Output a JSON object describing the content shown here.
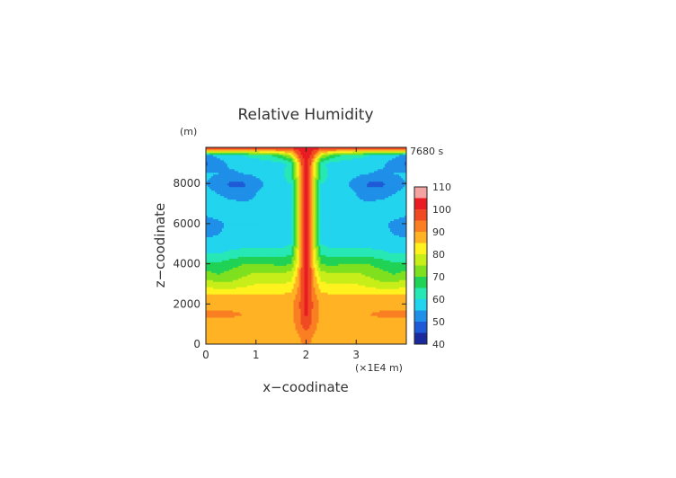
{
  "chart_data": {
    "type": "heatmap",
    "title": "Relative Humidity",
    "time_label": "7680 s",
    "xlabel": "x−coodinate",
    "ylabel": "z−coodinate",
    "x_unit": "(×1E4 m)",
    "y_unit": "(m)",
    "xlim": [
      0,
      4
    ],
    "ylim": [
      0,
      9800
    ],
    "x_ticks": [
      "0",
      "1",
      "2",
      "3"
    ],
    "y_ticks": [
      "0",
      "2000",
      "4000",
      "6000",
      "8000"
    ],
    "colorbar": {
      "min": 40,
      "max": 110,
      "tick_labels": [
        "40",
        "50",
        "60",
        "70",
        "80",
        "90",
        "100",
        "110"
      ],
      "bands": [
        {
          "from": 40,
          "to": 45,
          "color": "#1a2a9c"
        },
        {
          "from": 45,
          "to": 50,
          "color": "#1f5ad6"
        },
        {
          "from": 50,
          "to": 55,
          "color": "#1f8fe8"
        },
        {
          "from": 55,
          "to": 60,
          "color": "#22d4ee"
        },
        {
          "from": 60,
          "to": 65,
          "color": "#27e8b4"
        },
        {
          "from": 65,
          "to": 70,
          "color": "#20d255"
        },
        {
          "from": 70,
          "to": 75,
          "color": "#7ee01e"
        },
        {
          "from": 75,
          "to": 80,
          "color": "#c8ee1a"
        },
        {
          "from": 80,
          "to": 85,
          "color": "#fff21e"
        },
        {
          "from": 85,
          "to": 90,
          "color": "#ffb224"
        },
        {
          "from": 90,
          "to": 95,
          "color": "#f97f22"
        },
        {
          "from": 95,
          "to": 100,
          "color": "#f04a22"
        },
        {
          "from": 100,
          "to": 105,
          "color": "#e81c22"
        },
        {
          "from": 105,
          "to": 110,
          "color": "#f4a3a3"
        }
      ]
    },
    "field": {
      "grid_x": [
        0,
        0.25,
        0.5,
        0.75,
        1.0,
        1.25,
        1.5,
        1.7,
        1.85,
        1.92,
        2.0,
        2.08,
        2.15,
        2.3,
        2.5,
        2.75,
        3.0,
        3.25,
        3.5,
        3.75,
        4.0
      ],
      "grid_z": [
        0,
        500,
        1000,
        1500,
        2000,
        2500,
        3000,
        3500,
        4000,
        4500,
        5000,
        5500,
        6000,
        6500,
        7000,
        7500,
        8000,
        8500,
        9000,
        9400,
        9800
      ],
      "rh": [
        [
          85,
          85,
          85,
          85,
          85,
          85,
          86,
          87,
          88,
          90,
          91,
          90,
          88,
          87,
          86,
          85,
          85,
          85,
          85,
          85,
          85
        ],
        [
          86,
          86,
          86,
          86,
          86,
          86,
          87,
          88,
          90,
          92,
          93,
          92,
          90,
          88,
          87,
          86,
          86,
          86,
          86,
          86,
          86
        ],
        [
          88,
          88,
          88,
          87,
          86,
          86,
          86,
          88,
          92,
          96,
          98,
          96,
          92,
          88,
          86,
          86,
          86,
          87,
          88,
          88,
          88
        ],
        [
          91,
          91,
          91,
          90,
          89,
          88,
          88,
          89,
          93,
          98,
          101,
          98,
          93,
          89,
          88,
          88,
          89,
          90,
          91,
          91,
          91
        ],
        [
          88,
          88,
          88,
          88,
          88,
          88,
          88,
          89,
          93,
          99,
          102,
          99,
          93,
          89,
          88,
          88,
          88,
          88,
          88,
          88,
          88
        ],
        [
          85,
          85,
          85,
          85,
          85,
          85,
          85,
          86,
          92,
          99,
          102,
          99,
          92,
          86,
          85,
          85,
          85,
          85,
          85,
          85,
          85
        ],
        [
          78,
          76,
          76,
          78,
          80,
          80,
          80,
          81,
          90,
          98,
          102,
          98,
          90,
          81,
          80,
          80,
          80,
          78,
          76,
          76,
          78
        ],
        [
          72,
          70,
          72,
          74,
          76,
          76,
          76,
          77,
          88,
          97,
          102,
          97,
          88,
          77,
          76,
          76,
          76,
          74,
          72,
          70,
          72
        ],
        [
          66,
          66,
          68,
          70,
          70,
          70,
          69,
          70,
          85,
          96,
          102,
          96,
          85,
          70,
          69,
          70,
          70,
          70,
          68,
          66,
          66
        ],
        [
          60,
          60,
          62,
          63,
          63,
          63,
          63,
          65,
          82,
          96,
          102,
          96,
          82,
          65,
          63,
          63,
          63,
          63,
          62,
          60,
          60
        ],
        [
          57,
          56,
          57,
          58,
          58,
          58,
          58,
          60,
          80,
          96,
          102,
          96,
          80,
          60,
          58,
          58,
          58,
          58,
          57,
          56,
          57
        ],
        [
          54,
          55,
          56,
          57,
          57,
          57,
          57,
          59,
          80,
          96,
          102,
          96,
          80,
          59,
          57,
          57,
          57,
          57,
          56,
          55,
          54
        ],
        [
          51,
          54,
          56,
          56,
          56,
          56,
          56,
          58,
          80,
          96,
          102,
          96,
          80,
          58,
          56,
          56,
          56,
          56,
          56,
          54,
          51
        ],
        [
          56,
          57,
          57,
          57,
          57,
          56,
          57,
          59,
          80,
          96,
          102,
          96,
          80,
          59,
          57,
          56,
          57,
          57,
          57,
          57,
          56
        ],
        [
          58,
          58,
          57,
          56,
          56,
          57,
          59,
          60,
          80,
          96,
          102,
          96,
          80,
          60,
          59,
          57,
          56,
          56,
          57,
          58,
          58
        ],
        [
          57,
          55,
          52,
          52,
          55,
          57,
          59,
          60,
          80,
          96,
          102,
          96,
          80,
          60,
          59,
          57,
          55,
          52,
          52,
          55,
          57
        ],
        [
          55,
          52,
          49,
          49,
          53,
          56,
          59,
          60,
          80,
          96,
          102,
          96,
          80,
          60,
          59,
          56,
          53,
          49,
          49,
          52,
          55
        ],
        [
          56,
          55,
          54,
          55,
          56,
          58,
          59,
          62,
          82,
          96,
          102,
          96,
          82,
          62,
          59,
          58,
          56,
          55,
          54,
          55,
          56
        ],
        [
          49,
          53,
          56,
          57,
          57,
          57,
          58,
          62,
          84,
          97,
          102,
          97,
          84,
          62,
          58,
          57,
          57,
          57,
          56,
          53,
          49
        ],
        [
          54,
          56,
          58,
          60,
          62,
          64,
          68,
          76,
          96,
          100,
          102,
          100,
          96,
          76,
          68,
          64,
          62,
          60,
          58,
          56,
          54
        ],
        [
          102,
          102,
          102,
          102,
          102,
          102,
          102,
          102,
          102,
          102,
          102,
          102,
          102,
          102,
          102,
          102,
          102,
          102,
          102,
          102,
          102
        ]
      ]
    }
  }
}
